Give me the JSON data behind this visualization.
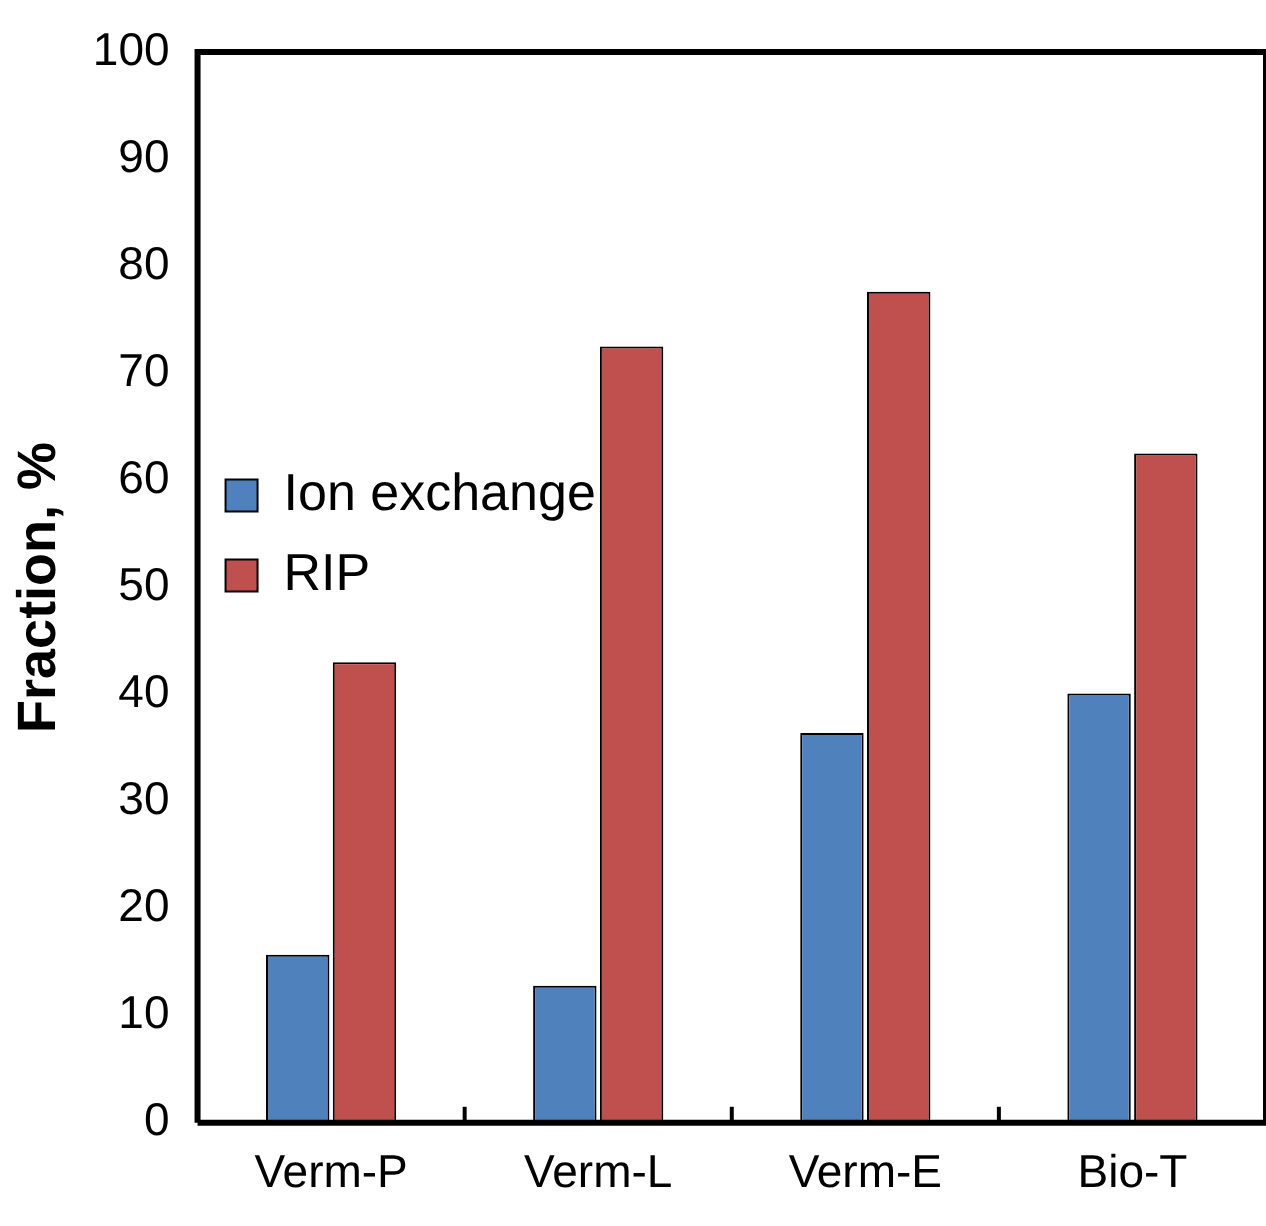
{
  "chart_data": {
    "type": "bar",
    "ylabel": "Fraction, %",
    "categories": [
      "Verm-P",
      "Verm-L",
      "Verm-E",
      "Bio-T"
    ],
    "series": [
      {
        "name": "Ion exchange",
        "color": "#4f81bd",
        "values": [
          15.7,
          12.8,
          36.4,
          40.1
        ]
      },
      {
        "name": "RIP",
        "color": "#c0504d",
        "values": [
          43.0,
          72.5,
          77.6,
          62.5
        ]
      }
    ],
    "ylim": [
      0,
      100
    ],
    "yticks": [
      0,
      10,
      20,
      30,
      40,
      50,
      60,
      70,
      80,
      90,
      100
    ],
    "grid": false,
    "legend": "top"
  }
}
